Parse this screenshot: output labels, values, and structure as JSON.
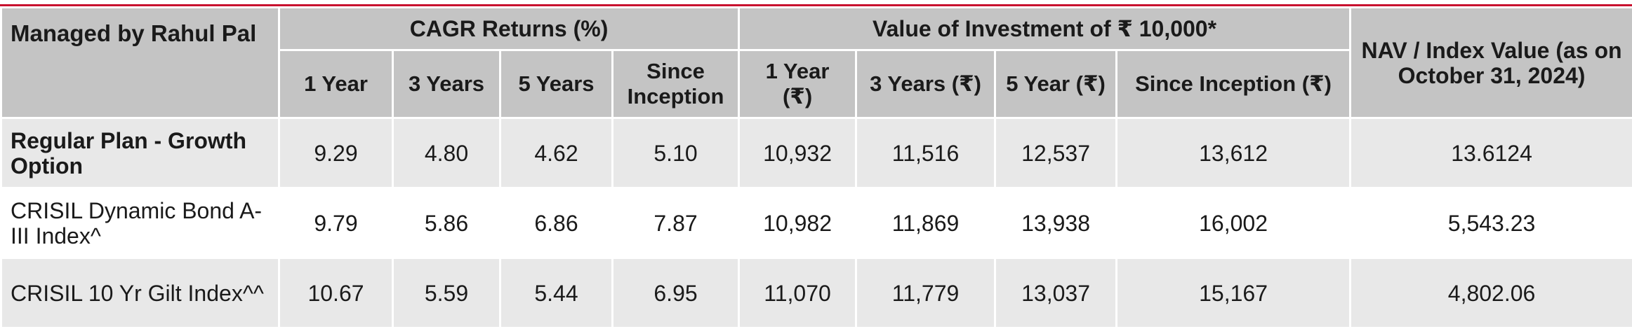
{
  "header": {
    "manager": "Managed by Rahul Pal",
    "cagr_group": "CAGR Returns (%)",
    "value_group": "Value of Investment of ₹ 10,000*",
    "nav_header": "NAV / Index Value (as on October 31, 2024)",
    "cagr_cols": [
      "1 Year",
      "3 Years",
      "5 Years",
      "Since Inception"
    ],
    "value_cols": [
      "1 Year (₹)",
      "3 Years (₹)",
      "5 Year (₹)",
      "Since Inception (₹)"
    ]
  },
  "rows": [
    {
      "label": "Regular Plan - Growth Option",
      "cagr": [
        "9.29",
        "4.80",
        "4.62",
        "5.10"
      ],
      "value": [
        "10,932",
        "11,516",
        "12,537",
        "13,612"
      ],
      "nav": "13.6124"
    },
    {
      "label": "CRISIL Dynamic Bond A-III Index^",
      "cagr": [
        "9.79",
        "5.86",
        "6.86",
        "7.87"
      ],
      "value": [
        "10,982",
        "11,869",
        "13,938",
        "16,002"
      ],
      "nav": "5,543.23"
    },
    {
      "label": "CRISIL 10 Yr Gilt Index^^",
      "cagr": [
        "10.67",
        "5.59",
        "5.44",
        "6.95"
      ],
      "value": [
        "11,070",
        "11,779",
        "13,037",
        "15,167"
      ],
      "nav": "4,802.06"
    }
  ],
  "colors": {
    "accent_border": "#c8102e",
    "header_bg": "#c4c4c4",
    "row_shade": "#e8e8e8"
  }
}
